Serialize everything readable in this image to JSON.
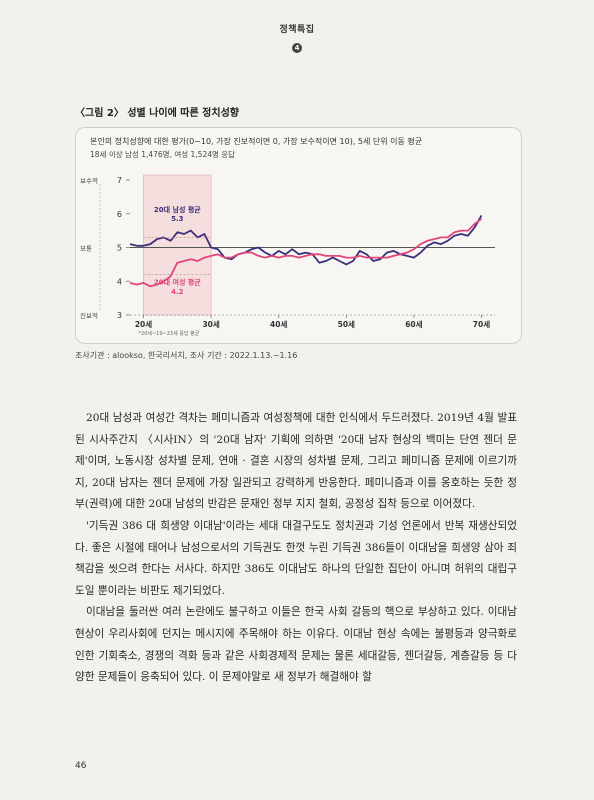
{
  "header": {
    "title": "정책특집",
    "section_number": "4"
  },
  "figure": {
    "title": "〈그림 2〉 성별 나이에 따른 정치성향",
    "subtitle": "본인의 정치성향에 대한 평가(0~10, 가장 진보적이면 0, 가장 보수적이면 10), 5세 단위 이동 평균",
    "sample": "18세 이상 남성 1,476명, 여성 1,524명 응답",
    "source": "조사기관 : alookso, 한국리서치, 조사 기간 : 2022.1.13.~1.16"
  },
  "chart_data": {
    "type": "line",
    "xlabel": "",
    "ylabel": "",
    "x_ticks": [
      "20세",
      "30세",
      "40세",
      "50세",
      "60세",
      "70세"
    ],
    "x_note": "*20세~19~23세 응답 평균",
    "y_ticks": [
      "3",
      "4",
      "5",
      "6",
      "7"
    ],
    "y_side_labels": {
      "top": "보수적",
      "mid": "보통",
      "bottom": "진보적"
    },
    "xlim": [
      18,
      72
    ],
    "ylim": [
      3,
      7
    ],
    "highlight_range": [
      20,
      30
    ],
    "reference_line": 5,
    "annotations": [
      {
        "label": "20대 남성 평균",
        "value": "5.3"
      },
      {
        "label": "20대 여성 평균",
        "value": "4.2"
      }
    ],
    "colors": {
      "male": "#3b2f7a",
      "female": "#e0457b",
      "highlight": "#f5dede",
      "reference": "#555555"
    },
    "series": [
      {
        "key": "male",
        "x": [
          18,
          19,
          20,
          21,
          22,
          23,
          24,
          25,
          26,
          27,
          28,
          29,
          30,
          31,
          32,
          33,
          34,
          35,
          36,
          37,
          38,
          39,
          40,
          41,
          42,
          43,
          44,
          45,
          46,
          47,
          48,
          49,
          50,
          51,
          52,
          53,
          54,
          55,
          56,
          57,
          58,
          59,
          60,
          61,
          62,
          63,
          64,
          65,
          66,
          67,
          68,
          69,
          70
        ],
        "values": [
          5.1,
          5.05,
          5.05,
          5.1,
          5.25,
          5.3,
          5.2,
          5.45,
          5.4,
          5.5,
          5.3,
          5.4,
          5.0,
          4.95,
          4.7,
          4.65,
          4.8,
          4.85,
          4.95,
          5.0,
          4.85,
          4.75,
          4.9,
          4.8,
          4.95,
          4.8,
          4.85,
          4.8,
          4.55,
          4.6,
          4.7,
          4.6,
          4.5,
          4.6,
          4.9,
          4.8,
          4.6,
          4.65,
          4.85,
          4.9,
          4.8,
          4.75,
          4.7,
          4.85,
          5.05,
          5.15,
          5.1,
          5.2,
          5.35,
          5.4,
          5.35,
          5.6,
          5.95
        ]
      },
      {
        "key": "female",
        "x": [
          18,
          19,
          20,
          21,
          22,
          23,
          24,
          25,
          26,
          27,
          28,
          29,
          30,
          31,
          32,
          33,
          34,
          35,
          36,
          37,
          38,
          39,
          40,
          41,
          42,
          43,
          44,
          45,
          46,
          47,
          48,
          49,
          50,
          51,
          52,
          53,
          54,
          55,
          56,
          57,
          58,
          59,
          60,
          61,
          62,
          63,
          64,
          65,
          66,
          67,
          68,
          69,
          70
        ],
        "values": [
          3.95,
          3.9,
          3.95,
          3.85,
          3.9,
          4.0,
          4.15,
          4.55,
          4.6,
          4.65,
          4.6,
          4.7,
          4.75,
          4.8,
          4.7,
          4.7,
          4.8,
          4.85,
          4.85,
          4.75,
          4.7,
          4.75,
          4.7,
          4.75,
          4.75,
          4.7,
          4.75,
          4.8,
          4.8,
          4.75,
          4.75,
          4.75,
          4.7,
          4.7,
          4.75,
          4.7,
          4.7,
          4.7,
          4.7,
          4.75,
          4.8,
          4.85,
          4.95,
          5.1,
          5.2,
          5.25,
          5.3,
          5.3,
          5.45,
          5.5,
          5.5,
          5.7,
          5.85
        ]
      }
    ]
  },
  "body": {
    "paragraphs": [
      "20대 남성과 여성간 격차는 페미니즘과 여성정책에 대한 인식에서 두드러졌다. 2019년 4월 발표된 시사주간지 〈시사IN〉의 '20대 남자' 기획에 의하면 '20대 남자 현상의 백미는 단연 젠더 문제'이며, 노동시장 성차별 문제, 연애 · 결혼 시장의 성차별 문제, 그리고 페미니즘 문제에 이르기까지, 20대 남자는 젠더 문제에 가장 일관되고 강력하게 반응한다. 페미니즘과 이를 옹호하는 듯한 정부(권력)에 대한 20대 남성의 반감은 문재인 정부 지지 철회, 공정성 집착 등으로 이어졌다.",
      "'기득권 386 대 희생양 이대남'이라는 세대 대결구도도 정치권과 기성 언론에서 반복 재생산되었다. 좋은 시절에 태어나 남성으로서의 기득권도 한껏 누린 기득권 386들이 이대남을 희생양 삼아 죄책감을 씻으려 한다는 서사다. 하지만 386도 이대남도 하나의 단일한 집단이 아니며 허위의 대립구도일 뿐이라는 비판도 제기되었다.",
      "이대남을 둘러싼 여러 논란에도 불구하고 이들은 한국 사회 갈등의 핵으로 부상하고 있다. 이대남 현상이 우리사회에 던지는 메시지에 주목해야 하는 이유다. 이대남 현상 속에는 불평등과 양극화로 인한 기회축소, 경쟁의 격화 등과 같은 사회경제적 문제는 물론 세대갈등, 젠더갈등, 계층갈등 등 다양한 문제들이 응축되어 있다. 이 문제야말로 새 정부가 해결해야 할"
    ]
  },
  "page_number": "46"
}
